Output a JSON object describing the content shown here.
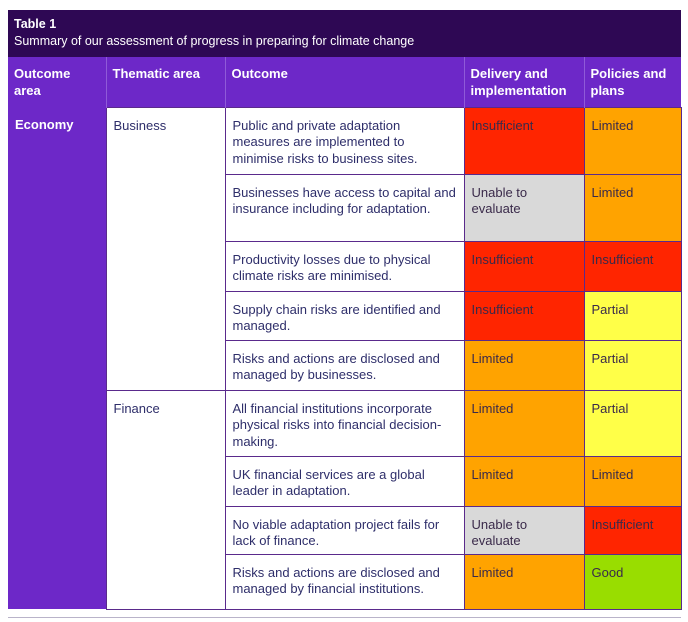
{
  "table": {
    "title": "Table 1",
    "subtitle": "Summary of our assessment of progress in preparing for climate change",
    "headers": {
      "outcome_area": "Outcome area",
      "thematic_area": "Thematic area",
      "outcome": "Outcome",
      "delivery": "Delivery and implementation",
      "policies": "Policies and plans"
    },
    "outcome_area": "Economy",
    "rating_colors": {
      "Insufficient": "#ff2500",
      "Limited": "#ffa300",
      "Partial": "#ffff48",
      "Unable to evaluate": "#d9d9d9",
      "Good": "#99dd00"
    },
    "groups": [
      {
        "thematic_area": "Business",
        "rows": [
          {
            "outcome": "Public and private adaptation measures are implemented to minimise risks to business sites.",
            "delivery": "Insufficient",
            "policies": "Limited"
          },
          {
            "outcome": "Businesses have access to capital and insurance including for adaptation.",
            "delivery": "Unable to evaluate",
            "policies": "Limited"
          },
          {
            "outcome": "Productivity losses due to physical climate risks are minimised.",
            "delivery": "Insufficient",
            "policies": "Insufficient"
          },
          {
            "outcome": "Supply chain risks are identified and managed.",
            "delivery": "Insufficient",
            "policies": "Partial"
          },
          {
            "outcome": "Risks and actions are disclosed and managed by businesses.",
            "delivery": "Limited",
            "policies": "Partial"
          }
        ]
      },
      {
        "thematic_area": "Finance",
        "rows": [
          {
            "outcome": "All financial institutions incorporate physical risks into financial decision-making.",
            "delivery": "Limited",
            "policies": "Partial"
          },
          {
            "outcome": "UK financial services are a global leader in adaptation.",
            "delivery": "Limited",
            "policies": "Limited"
          },
          {
            "outcome": "No viable adaptation project fails for lack of finance.",
            "delivery": "Unable to evaluate",
            "policies": "Insufficient"
          },
          {
            "outcome": "Risks and actions are disclosed and managed by financial institutions.",
            "delivery": "Limited",
            "policies": "Good"
          }
        ]
      }
    ]
  }
}
